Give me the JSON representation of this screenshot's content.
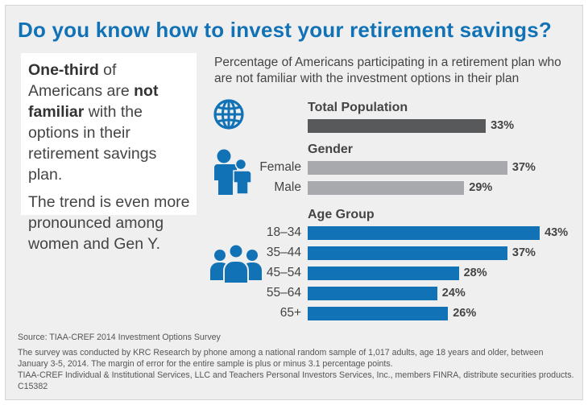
{
  "title": "Do you know how to invest your retirement savings?",
  "callout": {
    "p1_bold1": "One-third",
    "p1_text1": " of Americans are ",
    "p1_bold2": "not familiar",
    "p1_text2": " with the options in their retirement savings plan.",
    "p2": "The trend is even more pronounced among women and Gen Y."
  },
  "subtitle": "Percentage of Americans participating in a retirement plan who are not familiar with the investment options in their plan",
  "colors": {
    "title": "#1272b6",
    "total": "#58595b",
    "gender": "#a7a9ac",
    "age": "#1272b6",
    "icon": "#1272b6"
  },
  "icons": {
    "total": "globe-icon",
    "gender": "family-icon",
    "age": "people-group-icon"
  },
  "chart_data": {
    "type": "bar",
    "orientation": "horizontal",
    "unit": "%",
    "groups": [
      {
        "name": "Total Population",
        "categories": [
          ""
        ],
        "values": [
          33
        ]
      },
      {
        "name": "Gender",
        "categories": [
          "Female",
          "Male"
        ],
        "values": [
          37,
          29
        ]
      },
      {
        "name": "Age Group",
        "categories": [
          "18–34",
          "35–44",
          "45–54",
          "55–64",
          "65+"
        ],
        "values": [
          43,
          37,
          28,
          24,
          26
        ]
      }
    ]
  },
  "footer": {
    "source": "Source: TIAA-CREF 2014 Investment Options Survey",
    "line1": "The survey was conducted by KRC Research by phone among a national random sample of 1,017 adults, age 18 years and older, between",
    "line2": "January 3-5, 2014. The margin of error for the entire sample is plus or minus 3.1 percentage points.",
    "line3": "TIAA-CREF Individual & Institutional Services, LLC and Teachers Personal Investors Services, Inc., members FINRA, distribute securities products.",
    "code": "C15382"
  }
}
